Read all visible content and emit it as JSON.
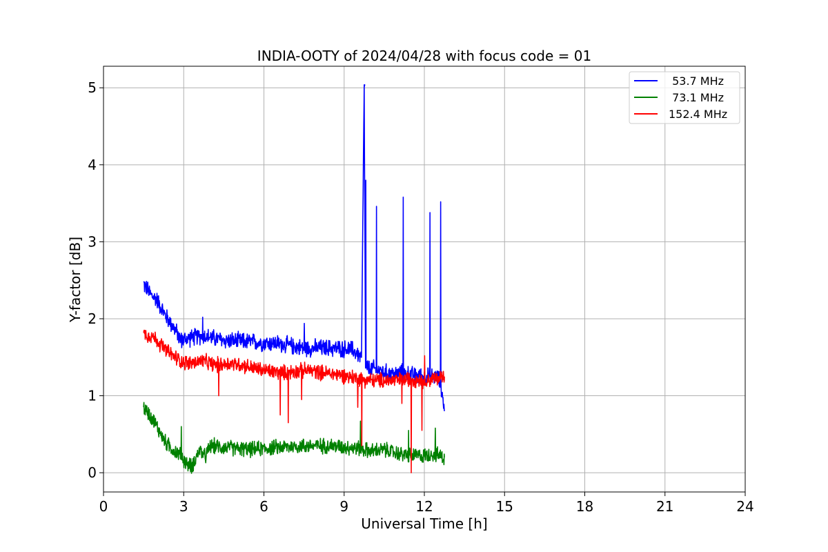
{
  "chart_data": {
    "type": "line",
    "title": "INDIA-OOTY of 2024/04/28 with focus code = 01",
    "xlabel": "Universal Time [h]",
    "ylabel": "Y-factor [dB]",
    "xlim": [
      0,
      24
    ],
    "ylim": [
      -0.25,
      5.28
    ],
    "xticks": [
      0,
      3,
      6,
      9,
      12,
      15,
      18,
      21,
      24
    ],
    "yticks": [
      0,
      1,
      2,
      3,
      4,
      5
    ],
    "grid": true,
    "legend_position": "top-right",
    "series": [
      {
        "name": " 53.7 MHz",
        "color": "#0000ff",
        "x": [
          1.5,
          1.8,
          2.0,
          2.3,
          2.6,
          2.9,
          3.2,
          3.7,
          4.5,
          5.5,
          6.5,
          7.5,
          8.5,
          9.3,
          9.65,
          9.75,
          9.8,
          9.9,
          10.2,
          10.5,
          11.0,
          11.2,
          11.5,
          12.0,
          12.2,
          12.4,
          12.6,
          12.75
        ],
        "y": [
          2.45,
          2.3,
          2.25,
          2.05,
          1.9,
          1.72,
          1.75,
          1.78,
          1.72,
          1.7,
          1.68,
          1.62,
          1.62,
          1.6,
          1.5,
          5.02,
          1.4,
          1.35,
          1.35,
          1.3,
          1.28,
          1.3,
          1.27,
          1.25,
          1.25,
          1.25,
          1.2,
          0.8
        ],
        "spikes": [
          [
            3.7,
            2.02
          ],
          [
            7.5,
            1.94
          ],
          [
            9.75,
            5.02
          ],
          [
            9.8,
            3.8
          ],
          [
            10.2,
            3.46
          ],
          [
            11.2,
            3.58
          ],
          [
            12.2,
            3.38
          ],
          [
            12.6,
            3.52
          ]
        ]
      },
      {
        "name": " 73.1 MHz",
        "color": "#008000",
        "x": [
          1.5,
          1.8,
          2.0,
          2.3,
          2.6,
          2.9,
          3.1,
          3.3,
          3.6,
          3.8,
          4.0,
          4.5,
          5.5,
          6.5,
          7.5,
          8.5,
          9.5,
          10.0,
          10.5,
          11.0,
          11.5,
          12.0,
          12.3,
          12.75
        ],
        "y": [
          0.85,
          0.72,
          0.6,
          0.4,
          0.3,
          0.22,
          0.12,
          0.08,
          0.3,
          0.2,
          0.35,
          0.33,
          0.3,
          0.33,
          0.35,
          0.35,
          0.32,
          0.28,
          0.3,
          0.25,
          0.22,
          0.22,
          0.25,
          0.2
        ],
        "spikes": [
          [
            2.9,
            0.6
          ],
          [
            9.6,
            0.67
          ],
          [
            11.4,
            0.55
          ],
          [
            12.4,
            0.58
          ]
        ]
      },
      {
        "name": "152.4 MHz",
        "color": "#ff0000",
        "x": [
          1.5,
          1.8,
          2.0,
          2.3,
          2.6,
          2.9,
          3.2,
          3.7,
          4.2,
          4.7,
          5.2,
          5.7,
          6.2,
          6.7,
          7.2,
          7.7,
          8.2,
          8.7,
          9.2,
          9.6,
          10.0,
          10.5,
          11.0,
          11.5,
          12.0,
          12.4,
          12.75
        ],
        "y": [
          1.8,
          1.78,
          1.72,
          1.6,
          1.52,
          1.45,
          1.42,
          1.45,
          1.4,
          1.42,
          1.4,
          1.35,
          1.32,
          1.3,
          1.32,
          1.33,
          1.3,
          1.28,
          1.25,
          1.22,
          1.2,
          1.2,
          1.2,
          1.22,
          1.2,
          1.22,
          1.25
        ],
        "spikes": [
          [
            4.3,
            1.0
          ],
          [
            6.6,
            0.75
          ],
          [
            6.9,
            0.65
          ],
          [
            7.4,
            0.95
          ],
          [
            9.5,
            0.85
          ],
          [
            9.65,
            0.35
          ],
          [
            11.15,
            0.9
          ],
          [
            11.5,
            0.0
          ],
          [
            11.9,
            0.55
          ],
          [
            12.0,
            1.52
          ]
        ]
      }
    ]
  }
}
